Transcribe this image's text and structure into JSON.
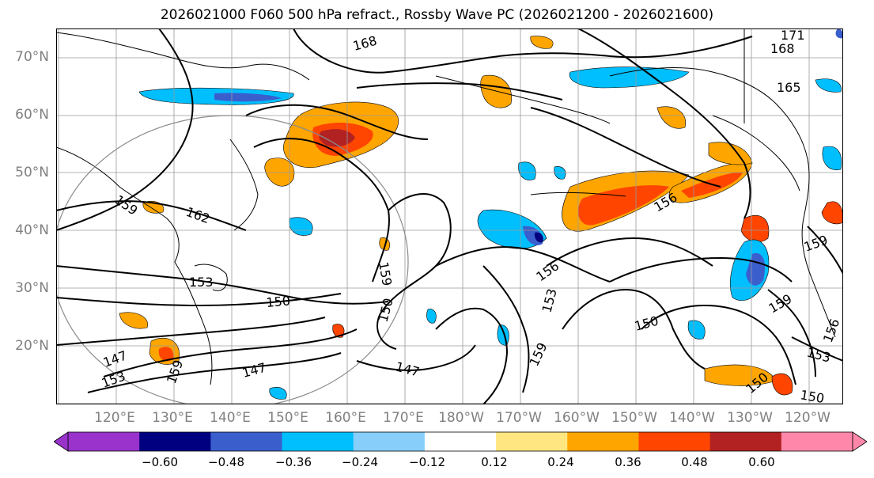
{
  "title": "2026021000 F060 500 hPa refract., Rossby Wave PC (2026021200 - 2026021600)",
  "lat_labels": [
    "70°N",
    "60°N",
    "50°N",
    "40°N",
    "30°N",
    "20°N"
  ],
  "lon_labels": [
    "120°E",
    "130°E",
    "140°E",
    "150°E",
    "160°E",
    "170°E",
    "180°W",
    "170°W",
    "160°W",
    "150°W",
    "140°W",
    "130°W",
    "120°W"
  ],
  "contour_labels": [
    "168",
    "171",
    "168",
    "165",
    "159",
    "162",
    "153",
    "150",
    "147",
    "159",
    "150",
    "147",
    "156",
    "153",
    "159",
    "150",
    "156",
    "159",
    "159",
    "156",
    "153",
    "150",
    "150",
    "147",
    "153",
    "159"
  ],
  "colorbar": {
    "colors": [
      "#9933cc",
      "#000080",
      "#3a5fcd",
      "#00bfff",
      "#87cefa",
      "#ffffff",
      "#ffe680",
      "#ffa500",
      "#ff4500",
      "#b22222",
      "#ff88aa"
    ],
    "tick_labels": [
      "−0.60",
      "−0.48",
      "−0.36",
      "−0.24",
      "−0.12",
      "0.12",
      "0.24",
      "0.36",
      "0.48",
      "0.60"
    ]
  }
}
